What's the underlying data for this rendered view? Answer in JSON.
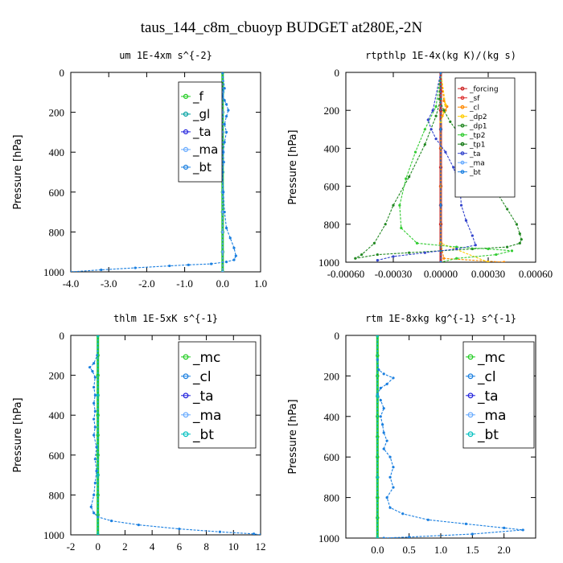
{
  "figure": {
    "title": "taus_144_c8m_cbuoyp  BUDGET at280E,-2N"
  },
  "chart_data": [
    {
      "type": "line",
      "title": "um   1E-4xm s^{-2}",
      "ylabel": "Pressure [hPa]",
      "xlim": [
        -4.0,
        1.0
      ],
      "ylim": [
        1000,
        0
      ],
      "xticks": [
        -4.0,
        -3.0,
        -2.0,
        -1.0,
        0.0,
        1.0
      ],
      "xtick_labels": [
        "-4.0",
        "-3.0",
        "-2.0",
        "-1.0",
        "0.0",
        "1.0"
      ],
      "yticks": [
        0,
        200,
        400,
        600,
        800,
        1000
      ],
      "ytick_labels": [
        "0",
        "200",
        "400",
        "600",
        "800",
        "1000"
      ],
      "legend": {
        "position": "top-right",
        "entries": [
          "_f",
          "_gl",
          "_ta",
          "_ma",
          "_bt"
        ]
      },
      "series": [
        {
          "name": "_f",
          "color": "#22cc22",
          "x": [
            0,
            0,
            0,
            0,
            0,
            0,
            0,
            0,
            0,
            0,
            0
          ],
          "y": [
            0,
            100,
            200,
            300,
            400,
            500,
            600,
            700,
            800,
            900,
            1000
          ]
        },
        {
          "name": "_gl",
          "color": "#00a0a0",
          "x": [
            0,
            0,
            0,
            -0.1,
            -0.15,
            -0.05,
            0,
            0
          ],
          "y": [
            0,
            90,
            110,
            130,
            150,
            180,
            220,
            1000
          ]
        },
        {
          "name": "_ta",
          "color": "#2222dd",
          "x": [
            0,
            0,
            0,
            0,
            0,
            0,
            0,
            0,
            0,
            0,
            0
          ],
          "y": [
            0,
            100,
            200,
            300,
            400,
            500,
            600,
            700,
            800,
            900,
            1000
          ]
        },
        {
          "name": "_ma",
          "color": "#66aaff",
          "x": [
            0,
            0,
            0,
            0,
            0,
            0,
            0,
            0,
            0,
            0,
            0
          ],
          "y": [
            0,
            100,
            200,
            300,
            400,
            500,
            600,
            700,
            800,
            900,
            1000
          ]
        },
        {
          "name": "_bt",
          "color": "#1a7fe0",
          "x": [
            0,
            0.05,
            0,
            0.05,
            0.1,
            0.15,
            0.1,
            0.05,
            0.1,
            0.05,
            0.02,
            0.03,
            0,
            0.02,
            0.05,
            0.1,
            0.2,
            0.3,
            0.35,
            0.3,
            0.1,
            -0.3,
            -0.9,
            -1.4,
            -2.3,
            -3.2,
            -4.0
          ],
          "y": [
            0,
            80,
            120,
            140,
            160,
            190,
            220,
            260,
            300,
            350,
            400,
            450,
            500,
            600,
            700,
            780,
            830,
            880,
            920,
            940,
            950,
            960,
            965,
            970,
            980,
            990,
            1000
          ]
        }
      ]
    },
    {
      "type": "line",
      "title": "rtpthlp   1E-4x(kg K)/(kg s)",
      "ylabel": "Pressure [hPa]",
      "xlim": [
        -0.0006,
        0.0006
      ],
      "ylim": [
        1000,
        0
      ],
      "xticks": [
        -0.0006,
        -0.0003,
        0.0,
        0.0003,
        0.0006
      ],
      "xtick_labels": [
        "-0.00060",
        "-0.00030",
        "0.00000",
        "0.00030",
        "0.00060"
      ],
      "yticks": [
        0,
        200,
        400,
        600,
        800,
        1000
      ],
      "ytick_labels": [
        "0",
        "200",
        "400",
        "600",
        "800",
        "1000"
      ],
      "legend": {
        "position": "top-right",
        "entries": [
          "_forcing",
          "_sf",
          "_cl",
          "_dp2",
          "_dp1",
          "_tp2",
          "_tp1",
          "_ta",
          "_ma",
          "_bt"
        ]
      },
      "series": [
        {
          "name": "_forcing",
          "color": "#cc2222",
          "x": [
            0,
            0,
            0,
            0,
            0,
            0,
            0,
            0,
            0,
            0,
            0
          ],
          "y": [
            0,
            100,
            200,
            300,
            400,
            500,
            600,
            700,
            800,
            900,
            1000
          ]
        },
        {
          "name": "_sf",
          "color": "#dd3333",
          "x": [
            0,
            0,
            0
          ],
          "y": [
            0,
            500,
            1000
          ]
        },
        {
          "name": "_cl",
          "color": "#ff8800",
          "x": [
            0,
            2e-05,
            4e-05,
            3e-05,
            1e-05,
            0,
            0,
            0,
            0,
            2e-05,
            0.0004
          ],
          "y": [
            0,
            150,
            180,
            200,
            230,
            260,
            400,
            600,
            900,
            980,
            1000
          ]
        },
        {
          "name": "_dp2",
          "color": "#ffcc00",
          "x": [
            0,
            3e-05,
            2e-05,
            0,
            0,
            0.0003
          ],
          "y": [
            0,
            170,
            210,
            260,
            900,
            1000
          ]
        },
        {
          "name": "_dp1",
          "color": "#228822",
          "x": [
            0,
            -1e-05,
            2e-05,
            6e-05,
            0.00012,
            0.00018,
            0.00025,
            0.0003,
            0.00036,
            0.00042,
            0.00048,
            0.0005,
            0.00051,
            0.0005,
            0.00042,
            0.0002,
            0,
            -0.0002,
            -0.0004,
            -0.00054,
            -0.0005,
            -0.00042,
            -0.00035,
            -0.0003,
            -0.0002,
            -0.0001,
            -3e-05,
            0
          ],
          "y": [
            0,
            140,
            200,
            260,
            330,
            400,
            480,
            560,
            640,
            720,
            800,
            850,
            880,
            900,
            920,
            930,
            940,
            950,
            960,
            980,
            960,
            900,
            800,
            700,
            550,
            380,
            230,
            140
          ]
        },
        {
          "name": "_tp2",
          "color": "#33cc33",
          "x": [
            0,
            -3e-05,
            -0.0001,
            -0.00016,
            -0.00022,
            -0.00026,
            -0.00025,
            -0.00015,
            0.0001,
            0.0003,
            0.00045,
            0.00035,
            0.0001,
            0
          ],
          "y": [
            0,
            180,
            300,
            420,
            560,
            700,
            820,
            900,
            920,
            930,
            940,
            960,
            980,
            1000
          ]
        },
        {
          "name": "_tp1",
          "color": "#117711",
          "x": [
            0,
            0,
            0,
            0
          ],
          "y": [
            0,
            300,
            700,
            1000
          ]
        },
        {
          "name": "_ta",
          "color": "#3344cc",
          "x": [
            0,
            -5e-05,
            -8e-05,
            -6e-05,
            -3e-05,
            3e-05,
            8e-05,
            0.00012,
            0.00013,
            0.00016,
            0.0002,
            0.00022,
            0.0001,
            -0.0001,
            -0.0003,
            -0.0004
          ],
          "y": [
            0,
            200,
            250,
            300,
            350,
            420,
            500,
            600,
            700,
            780,
            860,
            910,
            930,
            950,
            970,
            990
          ]
        },
        {
          "name": "_ma",
          "color": "#66aaff",
          "x": [
            0,
            0,
            0,
            0
          ],
          "y": [
            0,
            300,
            700,
            1000
          ]
        },
        {
          "name": "_bt",
          "color": "#1a7fe0",
          "x": [
            0,
            0,
            0,
            0
          ],
          "y": [
            0,
            300,
            700,
            1000
          ]
        }
      ]
    },
    {
      "type": "line",
      "title": "thlm   1E-5xK  s^{-1}",
      "ylabel": "Pressure [hPa]",
      "xlim": [
        -2,
        12
      ],
      "ylim": [
        1000,
        0
      ],
      "xticks": [
        -2,
        0,
        2,
        4,
        6,
        8,
        10,
        12
      ],
      "xtick_labels": [
        "-2",
        "0",
        "2",
        "4",
        "6",
        "8",
        "10",
        "12"
      ],
      "yticks": [
        0,
        200,
        400,
        600,
        800,
        1000
      ],
      "ytick_labels": [
        "0",
        "200",
        "400",
        "600",
        "800",
        "1000"
      ],
      "legend": {
        "position": "top-right",
        "entries": [
          "_mc",
          "_cl",
          "_ta",
          "_ma",
          "_bt"
        ]
      },
      "series": [
        {
          "name": "_mc",
          "color": "#22cc22",
          "x": [
            0,
            0,
            0,
            0,
            0,
            0,
            0,
            0,
            0,
            0,
            0
          ],
          "y": [
            0,
            100,
            200,
            300,
            400,
            500,
            600,
            700,
            800,
            900,
            1000
          ]
        },
        {
          "name": "_cl",
          "color": "#1a7fe0",
          "x": [
            0,
            -0.05,
            -0.3,
            -0.6,
            -0.4,
            -0.2,
            -0.3,
            -0.2,
            -0.3,
            -0.2,
            -0.3,
            -0.2,
            -0.3,
            -0.1,
            -0.2,
            -0.1,
            -0.2,
            -0.3,
            -0.5,
            -0.3,
            0,
            1,
            3,
            6,
            9,
            11.5,
            12
          ],
          "y": [
            0,
            100,
            140,
            160,
            180,
            210,
            260,
            300,
            340,
            380,
            420,
            460,
            500,
            560,
            620,
            680,
            740,
            800,
            860,
            890,
            910,
            930,
            950,
            970,
            985,
            995,
            1000
          ]
        },
        {
          "name": "_ta",
          "color": "#2222dd",
          "x": [
            0,
            0,
            0,
            0
          ],
          "y": [
            0,
            300,
            700,
            1000
          ]
        },
        {
          "name": "_ma",
          "color": "#66aaff",
          "x": [
            0,
            0,
            0,
            0
          ],
          "y": [
            0,
            300,
            700,
            1000
          ]
        },
        {
          "name": "_bt",
          "color": "#00c0c0",
          "x": [
            0,
            0,
            0,
            0
          ],
          "y": [
            0,
            300,
            700,
            1000
          ]
        }
      ]
    },
    {
      "type": "line",
      "title": "rtm   1E-8xkg kg^{-1} s^{-1}",
      "ylabel": "Pressure [hPa]",
      "xlim": [
        -0.5,
        2.5
      ],
      "ylim": [
        1000,
        0
      ],
      "xticks": [
        0.0,
        0.5,
        1.0,
        1.5,
        2.0
      ],
      "xtick_labels": [
        "0.0",
        "0.5",
        "1.0",
        "1.5",
        "2.0"
      ],
      "yticks": [
        0,
        200,
        400,
        600,
        800,
        1000
      ],
      "ytick_labels": [
        "0",
        "200",
        "400",
        "600",
        "800",
        "1000"
      ],
      "legend": {
        "position": "top-right",
        "entries": [
          "_mc",
          "_cl",
          "_ta",
          "_ma",
          "_bt"
        ]
      },
      "series": [
        {
          "name": "_mc",
          "color": "#22cc22",
          "x": [
            0,
            0,
            0,
            0,
            0,
            0,
            0,
            0,
            0,
            0,
            0
          ],
          "y": [
            0,
            100,
            200,
            300,
            400,
            500,
            600,
            700,
            800,
            900,
            1000
          ]
        },
        {
          "name": "_cl",
          "color": "#1a7fe0",
          "x": [
            0,
            0,
            0.02,
            0.1,
            0.25,
            0.15,
            0.05,
            0,
            0.05,
            0.1,
            0.05,
            0.08,
            0.1,
            0.15,
            0.1,
            0.2,
            0.25,
            0.2,
            0.25,
            0.15,
            0.2,
            0.4,
            0.8,
            1.4,
            2.0,
            2.3,
            1.5,
            0.5,
            0.1
          ],
          "y": [
            0,
            120,
            170,
            190,
            210,
            240,
            260,
            290,
            320,
            360,
            400,
            440,
            480,
            520,
            560,
            600,
            650,
            700,
            750,
            800,
            850,
            880,
            910,
            930,
            950,
            960,
            980,
            995,
            1000
          ]
        },
        {
          "name": "_ta",
          "color": "#2222dd",
          "x": [
            0,
            0,
            0,
            0
          ],
          "y": [
            0,
            300,
            700,
            1000
          ]
        },
        {
          "name": "_ma",
          "color": "#66aaff",
          "x": [
            0,
            0,
            0,
            0
          ],
          "y": [
            0,
            300,
            700,
            1000
          ]
        },
        {
          "name": "_bt",
          "color": "#00c0c0",
          "x": [
            0,
            0,
            0,
            0
          ],
          "y": [
            0,
            300,
            700,
            1000
          ]
        }
      ]
    }
  ]
}
